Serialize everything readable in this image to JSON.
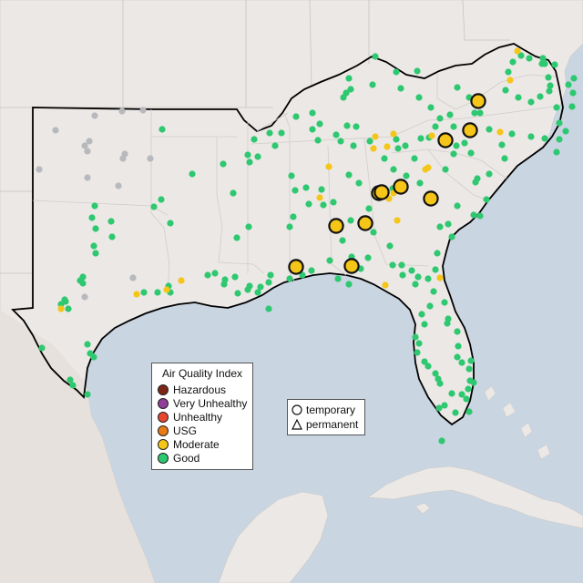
{
  "legend": {
    "title": "Air Quality Index",
    "categories": [
      {
        "label": "Hazardous",
        "color": "#7e2518"
      },
      {
        "label": "Very Unhealthy",
        "color": "#8f3f97"
      },
      {
        "label": "Unhealthy",
        "color": "#e8462e"
      },
      {
        "label": "USG",
        "color": "#e97a16"
      },
      {
        "label": "Moderate",
        "color": "#f5c518"
      },
      {
        "label": "Good",
        "color": "#2ec870"
      }
    ]
  },
  "monitor_types": {
    "temporary_label": "temporary",
    "permanent_label": "permanent"
  },
  "colors": {
    "water": "#c9d5e1",
    "land": "#ebe8e6",
    "no_data": "#b7b9bc",
    "region_outline": "#000000"
  },
  "temporary_monitors": {
    "category": "Moderate",
    "count": 12
  }
}
